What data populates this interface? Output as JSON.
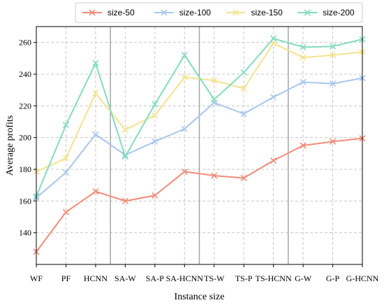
{
  "chart_data": {
    "type": "line",
    "xlabel": "Instance size",
    "ylabel": "Average profits",
    "categories": [
      "WF",
      "PF",
      "HCNN",
      "SA-W",
      "SA-P",
      "SA-HCNN",
      "TS-W",
      "TS-P",
      "TS-HCNN",
      "G-W",
      "G-P",
      "G-HCNN"
    ],
    "ylim": [
      120,
      270
    ],
    "yticks": [
      140,
      160,
      180,
      200,
      220,
      240,
      260
    ],
    "grid": true,
    "group_separators_after": [
      "HCNN",
      "SA-HCNN",
      "TS-HCNN"
    ],
    "legend_position": "top-right",
    "series": [
      {
        "name": "size-50",
        "color": "#f28b79",
        "marker": "x",
        "values": [
          128,
          153,
          166,
          160,
          163.5,
          178.5,
          176,
          174.5,
          185.5,
          195,
          197.5,
          199.5
        ]
      },
      {
        "name": "size-100",
        "color": "#a9c6ef",
        "marker": "x",
        "values": [
          162,
          178,
          202,
          189,
          197.5,
          205.5,
          222,
          215,
          225.5,
          235,
          234,
          237.5
        ]
      },
      {
        "name": "size-150",
        "color": "#f3e38f",
        "marker": "x",
        "values": [
          178.5,
          187,
          228,
          205,
          214,
          238,
          236,
          231,
          259.5,
          250.5,
          252,
          254
        ]
      },
      {
        "name": "size-200",
        "color": "#84dcbc",
        "marker": "x",
        "values": [
          163,
          208,
          247,
          188,
          221,
          252,
          224,
          241,
          262.5,
          257,
          257.5,
          262
        ]
      }
    ]
  }
}
